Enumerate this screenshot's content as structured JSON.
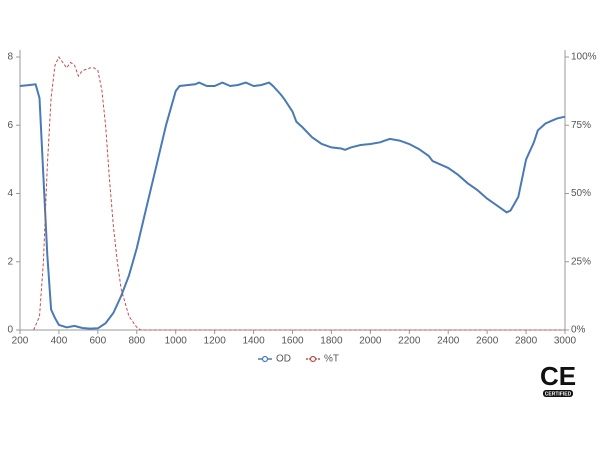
{
  "chart_data": {
    "type": "line",
    "xlim": [
      200,
      3000
    ],
    "xticks": [
      200,
      400,
      600,
      800,
      1000,
      1200,
      1400,
      1600,
      1800,
      2000,
      2200,
      2400,
      2600,
      2800,
      3000
    ],
    "ylim": [
      0,
      8
    ],
    "yticks": [
      0,
      2,
      4,
      6,
      8
    ],
    "y2lim": [
      0,
      100
    ],
    "y2ticks": [
      {
        "value": 0,
        "label": "0%"
      },
      {
        "value": 25,
        "label": "25%"
      },
      {
        "value": 50,
        "label": "50%"
      },
      {
        "value": 75,
        "label": "75%"
      },
      {
        "value": 100,
        "label": "100%"
      }
    ],
    "legend": "bottom",
    "series": [
      {
        "name": "OD",
        "color": "#4a7ab5",
        "dash": false,
        "x": [
          200,
          250,
          280,
          300,
          320,
          340,
          360,
          380,
          400,
          440,
          480,
          520,
          560,
          600,
          640,
          680,
          720,
          760,
          800,
          850,
          900,
          950,
          1000,
          1020,
          1100,
          1120,
          1160,
          1200,
          1240,
          1280,
          1320,
          1360,
          1400,
          1440,
          1480,
          1500,
          1540,
          1560,
          1600,
          1620,
          1650,
          1700,
          1750,
          1800,
          1850,
          1870,
          1900,
          1950,
          2000,
          2050,
          2100,
          2150,
          2200,
          2250,
          2300,
          2320,
          2400,
          2450,
          2500,
          2550,
          2600,
          2650,
          2700,
          2720,
          2760,
          2800,
          2840,
          2860,
          2900,
          2940,
          2960,
          3000
        ],
        "values": [
          7.15,
          7.18,
          7.2,
          6.8,
          4.5,
          2.2,
          0.6,
          0.35,
          0.15,
          0.08,
          0.12,
          0.06,
          0.04,
          0.05,
          0.2,
          0.5,
          1.0,
          1.6,
          2.4,
          3.6,
          4.8,
          6.0,
          7.0,
          7.15,
          7.2,
          7.25,
          7.15,
          7.15,
          7.25,
          7.15,
          7.18,
          7.25,
          7.15,
          7.18,
          7.25,
          7.15,
          6.9,
          6.75,
          6.4,
          6.1,
          5.95,
          5.65,
          5.45,
          5.35,
          5.32,
          5.28,
          5.35,
          5.42,
          5.45,
          5.5,
          5.6,
          5.55,
          5.45,
          5.3,
          5.1,
          4.95,
          4.75,
          4.55,
          4.3,
          4.1,
          3.85,
          3.65,
          3.45,
          3.5,
          3.9,
          5.0,
          5.5,
          5.85,
          6.05,
          6.15,
          6.2,
          6.25
        ]
      },
      {
        "name": "%T",
        "color": "#c0504d",
        "dash": true,
        "axis": "y2",
        "x": [
          270,
          300,
          320,
          340,
          360,
          380,
          400,
          420,
          440,
          460,
          480,
          500,
          520,
          560,
          580,
          600,
          620,
          640,
          660,
          680,
          700,
          720,
          760,
          800,
          820,
          3000
        ],
        "values": [
          0,
          5,
          25,
          60,
          85,
          97,
          100,
          98,
          96,
          98,
          97,
          93,
          95,
          96,
          96,
          95,
          88,
          75,
          55,
          38,
          25,
          15,
          5,
          1,
          0,
          0
        ]
      }
    ]
  },
  "badge": {
    "mark": "CE",
    "caption": "CERTIFIED"
  }
}
